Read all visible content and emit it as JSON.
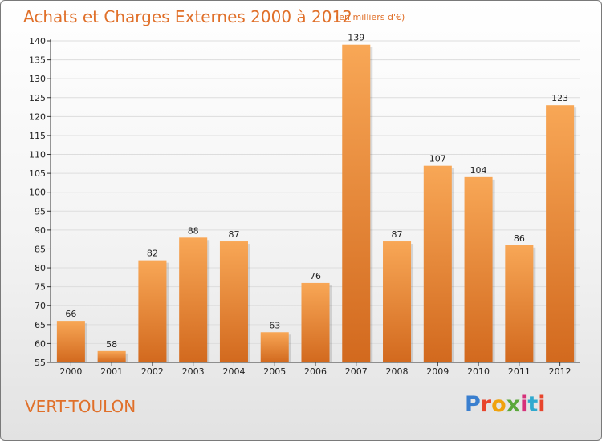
{
  "header": {
    "title": "Achats et Charges Externes 2000 à 2012",
    "unit": "(en milliers d'€)"
  },
  "footer": {
    "town": "VERT-TOULON",
    "logo": "Proxiti",
    "logo_colors": [
      "#3a7fcf",
      "#e8452c",
      "#f0a20c",
      "#5aa83a",
      "#d6307a",
      "#2fa9cf",
      "#e8452c"
    ]
  },
  "colors": {
    "bar_top": "#f8a756",
    "bar_bottom": "#d2691e",
    "title": "#e0702a",
    "grid": "#dddddd"
  },
  "chart_data": {
    "type": "bar",
    "title": "Achats et Charges Externes 2000 à 2012",
    "subtitle": "(en milliers d'€)",
    "categories": [
      "2000",
      "2001",
      "2002",
      "2003",
      "2004",
      "2005",
      "2006",
      "2007",
      "2008",
      "2009",
      "2010",
      "2011",
      "2012"
    ],
    "values": [
      66,
      58,
      82,
      88,
      87,
      63,
      76,
      139,
      87,
      107,
      104,
      86,
      123
    ],
    "ylim": [
      55,
      140
    ],
    "yticks": [
      55,
      60,
      65,
      70,
      75,
      80,
      85,
      90,
      95,
      100,
      105,
      110,
      115,
      120,
      125,
      130,
      135,
      140
    ],
    "grid": true,
    "legend": "none"
  }
}
